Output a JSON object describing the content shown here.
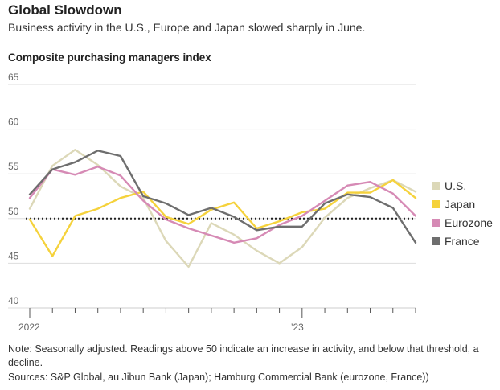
{
  "header": {
    "title": "Global Slowdown",
    "subtitle": "Business activity in the U.S., Europe and Japan slowed sharply in June.",
    "chart_label": "Composite purchasing managers index"
  },
  "footer": {
    "note": "Note: Seasonally adjusted. Readings above 50 indicate an increase in activity, and below that threshold, a decline.",
    "sources": "Sources: S&P Global, au Jibun Bank (Japan); Hamburg Commercial Bank (eurozone, France))"
  },
  "chart_data": {
    "type": "line",
    "title": "Composite purchasing managers index",
    "x": [
      "2022-01",
      "2022-02",
      "2022-03",
      "2022-04",
      "2022-05",
      "2022-06",
      "2022-07",
      "2022-08",
      "2022-09",
      "2022-10",
      "2022-11",
      "2022-12",
      "2023-01",
      "2023-02",
      "2023-03",
      "2023-04",
      "2023-05",
      "2023-06"
    ],
    "x_tick_labels": [
      {
        "index": 0,
        "label": "2022"
      },
      {
        "index": 12,
        "label": "’23"
      }
    ],
    "ylim": [
      40,
      65
    ],
    "y_ticks": [
      40,
      45,
      50,
      55,
      60,
      65
    ],
    "reference_line": 50,
    "legend_position": "right",
    "series": [
      {
        "name": "U.S.",
        "color": "#dcd8b8",
        "values": [
          51.1,
          55.9,
          57.7,
          56.0,
          53.6,
          52.3,
          47.5,
          44.6,
          49.5,
          48.2,
          46.4,
          45.0,
          46.8,
          50.1,
          52.3,
          53.4,
          54.3,
          53.0
        ]
      },
      {
        "name": "Japan",
        "color": "#f5d23c",
        "values": [
          49.9,
          45.8,
          50.3,
          51.1,
          52.3,
          53.0,
          50.2,
          49.4,
          51.0,
          51.8,
          48.9,
          49.7,
          50.7,
          51.1,
          52.9,
          52.9,
          54.3,
          52.3
        ]
      },
      {
        "name": "Eurozone",
        "color": "#d68ab5",
        "values": [
          52.3,
          55.5,
          54.9,
          55.8,
          54.8,
          52.0,
          49.9,
          48.9,
          48.1,
          47.3,
          47.8,
          49.3,
          50.3,
          52.0,
          53.7,
          54.1,
          52.8,
          50.3
        ]
      },
      {
        "name": "France",
        "color": "#6e6e6e",
        "values": [
          52.7,
          55.5,
          56.3,
          57.6,
          57.0,
          52.5,
          51.7,
          50.4,
          51.2,
          50.2,
          48.7,
          49.1,
          49.1,
          51.7,
          52.7,
          52.4,
          51.2,
          47.3
        ]
      }
    ]
  }
}
